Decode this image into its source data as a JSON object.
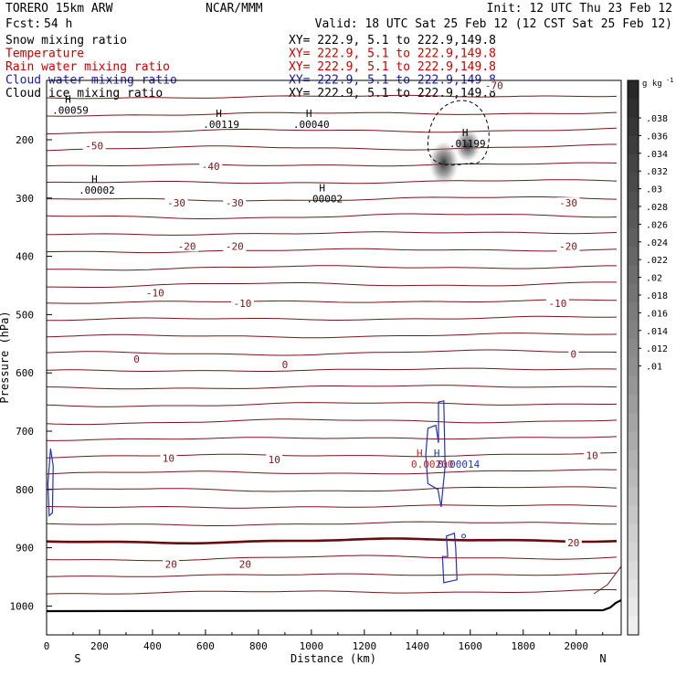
{
  "header": {
    "model_name": "TORERO  15km ARW",
    "org": "NCAR/MMM",
    "init": "Init: 12 UTC Thu 23 Feb 12",
    "fcst_label": "Fcst:",
    "fcst_value": "54 h",
    "valid": "Valid: 18 UTC Sat 25 Feb 12 (12 CST Sat 25 Feb 12)"
  },
  "legend": [
    {
      "name": "Snow mixing ratio",
      "color": "#000000",
      "xy": "XY= 222.9,  5.1 to 222.9,149.8"
    },
    {
      "name": "Temperature",
      "color": "#cc0000",
      "xy": "XY= 222.9,  5.1 to 222.9,149.8"
    },
    {
      "name": "Rain water mixing ratio",
      "color": "#cc0000",
      "xy": "XY= 222.9,  5.1 to 222.9,149.8"
    },
    {
      "name": "Cloud water mixing ratio",
      "color": "#1a1aa8",
      "xy": "XY= 222.9,  5.1 to 222.9,149.8"
    },
    {
      "name": "Cloud ice mixing ratio",
      "color": "#000000",
      "xy": "XY= 222.9,  5.1 to 222.9,149.8"
    }
  ],
  "colors": {
    "temperature": "#7a1418",
    "freezing": "#6a0b10",
    "cloud_water": "#2233bb",
    "rain": "#cc2222",
    "axis": "#000000"
  },
  "chart_data": {
    "type": "contour",
    "xlabel": "Distance (km)",
    "ylabel": "Pressure (hPa)",
    "xlim": [
      0,
      2170
    ],
    "ylim": [
      1050,
      100
    ],
    "x_ticks": [
      0,
      200,
      400,
      600,
      800,
      1000,
      1200,
      1400,
      1600,
      1800,
      2000
    ],
    "y_ticks": [
      200,
      300,
      400,
      500,
      600,
      700,
      800,
      900,
      1000
    ],
    "x_end_labels": {
      "left": "S",
      "right": "N"
    },
    "colorbar": {
      "unit": "g kg",
      "unit_exp": "-1",
      "ticks": [
        ".038",
        ".036",
        ".034",
        ".032",
        ".03",
        ".028",
        ".026",
        ".024",
        ".022",
        ".02",
        ".018",
        ".016",
        ".014",
        ".012",
        ".01"
      ]
    },
    "temperature_labels": [
      {
        "text": "-70",
        "x": 1690,
        "p": 108
      },
      {
        "text": "-50",
        "x": 180,
        "p": 212
      },
      {
        "text": "-40",
        "x": 620,
        "p": 247
      },
      {
        "text": "-30",
        "x": 490,
        "p": 310
      },
      {
        "text": "-30",
        "x": 710,
        "p": 310
      },
      {
        "text": "-30",
        "x": 1970,
        "p": 310
      },
      {
        "text": "-20",
        "x": 530,
        "p": 384
      },
      {
        "text": "-20",
        "x": 710,
        "p": 384
      },
      {
        "text": "-20",
        "x": 1970,
        "p": 384
      },
      {
        "text": "-10",
        "x": 410,
        "p": 464
      },
      {
        "text": "-10",
        "x": 740,
        "p": 482
      },
      {
        "text": "-10",
        "x": 1930,
        "p": 482
      },
      {
        "text": "0",
        "x": 340,
        "p": 578
      },
      {
        "text": "0",
        "x": 900,
        "p": 587
      },
      {
        "text": "0",
        "x": 1990,
        "p": 569
      },
      {
        "text": "10",
        "x": 460,
        "p": 748
      },
      {
        "text": "10",
        "x": 860,
        "p": 750
      },
      {
        "text": "10",
        "x": 2060,
        "p": 743
      },
      {
        "text": "20",
        "x": 470,
        "p": 930
      },
      {
        "text": "20",
        "x": 750,
        "p": 930
      },
      {
        "text": "20",
        "x": 1990,
        "p": 893
      }
    ],
    "snow_maxima": [
      {
        "text": ".00059",
        "x": 90,
        "p": 143
      },
      {
        "text": ".00119",
        "x": 660,
        "p": 167
      },
      {
        "text": ".00040",
        "x": 1000,
        "p": 167
      },
      {
        "text": ".00002",
        "x": 190,
        "p": 280
      },
      {
        "text": ".00002",
        "x": 1050,
        "p": 295
      }
    ],
    "ice_maxima": [
      {
        "text": ".01199",
        "x": 1590,
        "p": 200
      }
    ],
    "rain_maxima": [
      {
        "text": "0.00200",
        "x": 1425,
        "p": 750
      }
    ],
    "cloud_water_maxima": [
      {
        "text": "0.00014",
        "x": 1490,
        "p": 750
      }
    ]
  }
}
